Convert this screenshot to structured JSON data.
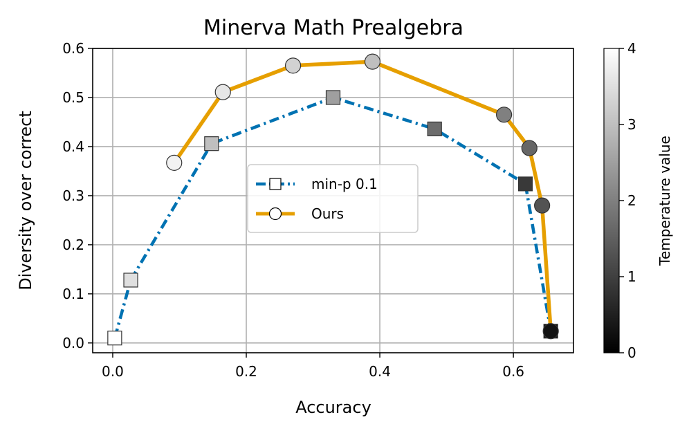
{
  "chart_data": {
    "type": "line",
    "title": "Minerva Math Prealgebra",
    "xlabel": "Accuracy",
    "ylabel": "Diversity over correct",
    "xlim": [
      -0.03,
      0.69
    ],
    "ylim": [
      -0.02,
      0.6
    ],
    "xticks": [
      0.0,
      0.2,
      0.4,
      0.6
    ],
    "xtick_labels": [
      "0.0",
      "0.2",
      "0.4",
      "0.6"
    ],
    "yticks": [
      0.0,
      0.1,
      0.2,
      0.3,
      0.4,
      0.5,
      0.6
    ],
    "ytick_labels": [
      "0.0",
      "0.1",
      "0.2",
      "0.3",
      "0.4",
      "0.5",
      "0.6"
    ],
    "grid": true,
    "legend_position": "center",
    "series": [
      {
        "name": "min-p 0.1",
        "color": "#0072b2",
        "line_style": "dash-dot",
        "marker": "square",
        "points": [
          {
            "x": 0.003,
            "y": 0.01,
            "temperature": 4.0
          },
          {
            "x": 0.027,
            "y": 0.128,
            "temperature": 3.5
          },
          {
            "x": 0.148,
            "y": 0.406,
            "temperature": 3.0
          },
          {
            "x": 0.33,
            "y": 0.5,
            "temperature": 2.5
          },
          {
            "x": 0.482,
            "y": 0.436,
            "temperature": 1.7
          },
          {
            "x": 0.618,
            "y": 0.324,
            "temperature": 0.9
          },
          {
            "x": 0.656,
            "y": 0.024,
            "temperature": 0.3
          }
        ]
      },
      {
        "name": "Ours",
        "color": "#e69f00",
        "line_style": "solid",
        "marker": "circle",
        "points": [
          {
            "x": 0.092,
            "y": 0.367,
            "temperature": 3.8
          },
          {
            "x": 0.165,
            "y": 0.511,
            "temperature": 3.6
          },
          {
            "x": 0.27,
            "y": 0.565,
            "temperature": 3.3
          },
          {
            "x": 0.389,
            "y": 0.573,
            "temperature": 3.0
          },
          {
            "x": 0.586,
            "y": 0.465,
            "temperature": 2.0
          },
          {
            "x": 0.624,
            "y": 0.397,
            "temperature": 1.6
          },
          {
            "x": 0.643,
            "y": 0.28,
            "temperature": 1.3
          },
          {
            "x": 0.656,
            "y": 0.024,
            "temperature": 0.3
          }
        ]
      }
    ],
    "colorbar": {
      "label": "Temperature value",
      "range": [
        0,
        4
      ],
      "ticks": [
        0,
        1,
        2,
        3,
        4
      ],
      "tick_labels": [
        "0",
        "1",
        "2",
        "3",
        "4"
      ],
      "colormap": "gray"
    }
  }
}
